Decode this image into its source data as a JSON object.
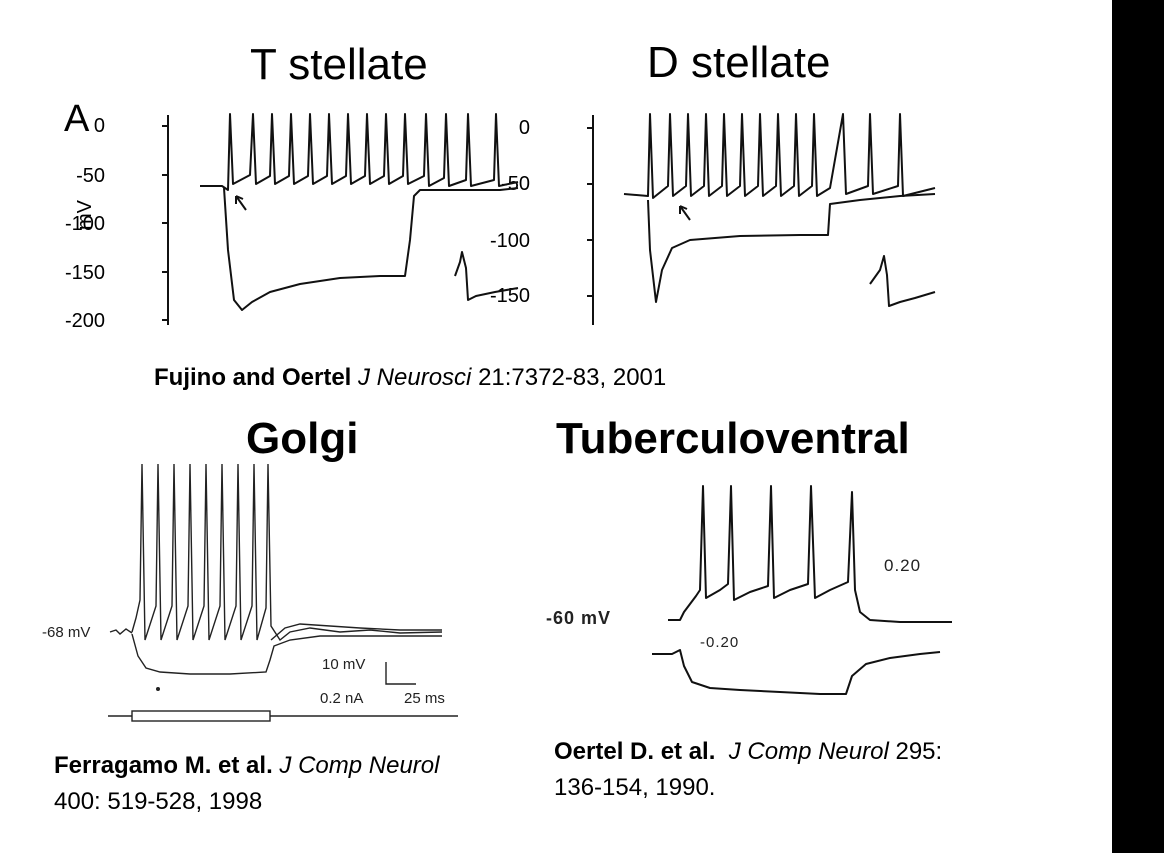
{
  "panels": {
    "t_stellate": {
      "title": "T stellate",
      "panel_letter": "A",
      "yaxis_label": "mV",
      "yticks": [
        "0",
        "-50",
        "-100",
        "-150",
        "-200"
      ]
    },
    "d_stellate": {
      "title": "D stellate",
      "yticks": [
        "0",
        "-50",
        "-100",
        "-150"
      ]
    },
    "golgi": {
      "title": "Golgi",
      "resting_label": "-68 mV",
      "scale_voltage": "10 mV",
      "scale_current": "0.2 nA",
      "scale_time": "25 ms"
    },
    "tuberculoventral": {
      "title": "Tuberculoventral",
      "resting_label": "-60 mV",
      "current_pos": "0.20",
      "current_neg": "-0.20"
    }
  },
  "citations": {
    "fujino": {
      "authors": "Fujino and Oertel",
      "journal": "J Neurosci",
      "details": "21:7372-83,  2001"
    },
    "ferragamo": {
      "authors": "Ferragamo M. et al.",
      "journal": "J Comp Neurol",
      "details": "400: 519-528, 1998"
    },
    "oertel": {
      "authors": "Oertel D. et al.",
      "journal": "J Comp Neurol",
      "details_line1": "295:",
      "details_line2": "136-154, 1990."
    }
  }
}
